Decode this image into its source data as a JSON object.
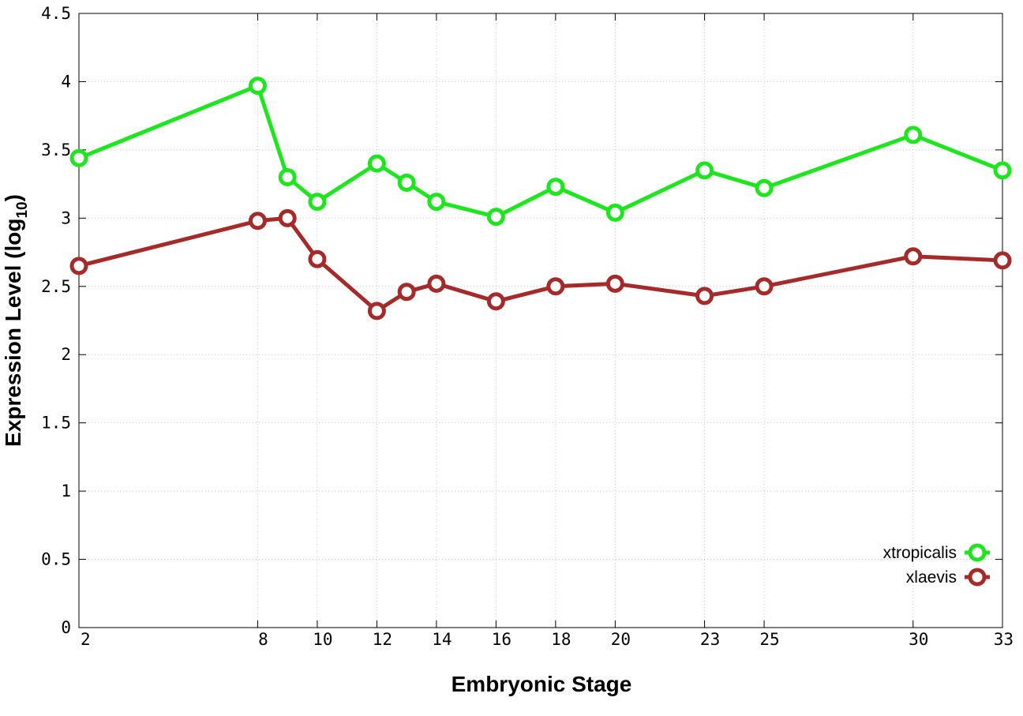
{
  "chart_data": {
    "type": "line",
    "xlabel": "Embryonic Stage",
    "ylabel_main": "Expression Level (log",
    "ylabel_sub": "10",
    "ylabel_close": ")",
    "x": [
      2,
      8,
      9,
      10,
      12,
      13,
      14,
      16,
      18,
      20,
      23,
      25,
      30,
      33
    ],
    "x_ticks": [
      2,
      8,
      10,
      12,
      14,
      16,
      18,
      20,
      23,
      25,
      30,
      33
    ],
    "xlim": [
      2,
      33
    ],
    "ylim": [
      0,
      4.5
    ],
    "y_ticks": [
      "0",
      "0.5",
      "1",
      "1.5",
      "2",
      "2.5",
      "3",
      "3.5",
      "4",
      "4.5"
    ],
    "grid": true,
    "legend_position": "bottom-right",
    "series": [
      {
        "name": "xtropicalis",
        "color": "#1ee61e",
        "values": [
          3.44,
          3.97,
          3.3,
          3.12,
          3.4,
          3.26,
          3.12,
          3.01,
          3.23,
          3.04,
          3.35,
          3.22,
          3.61,
          3.35
        ]
      },
      {
        "name": "xlaevis",
        "color": "#a52a2a",
        "values": [
          2.65,
          2.98,
          3.0,
          2.7,
          2.32,
          2.46,
          2.52,
          2.39,
          2.5,
          2.52,
          2.43,
          2.5,
          2.72,
          2.69
        ]
      }
    ]
  }
}
